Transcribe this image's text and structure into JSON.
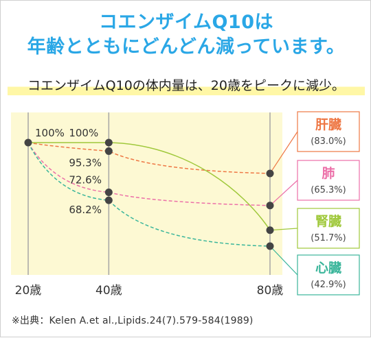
{
  "title": [
    "コエンザイムQ10は",
    "年齢とともにどんどん減っています。"
  ],
  "subtitle": "コエンザイムQ10の体内量は、20歳をピークに減少。",
  "source": "※出典：Kelen A.et al.,Lipids.24(7).579-584(1989)",
  "colors": {
    "title": "#2aa7e6",
    "plot_bg": "#fdf9d3",
    "axis_line": "#a6a6a6",
    "point": "#444444"
  },
  "chart_data": {
    "type": "line",
    "title": "",
    "xlabel": "",
    "ylabel": "",
    "x": [
      20,
      40,
      80
    ],
    "x_tick_labels": [
      "20歳",
      "40歳",
      "80歳"
    ],
    "ylim": [
      40,
      105
    ],
    "grid": "vertical lines at x ticks",
    "series": [
      {
        "name": "肝臓",
        "end_label": "(83.0%)",
        "color": "#ee7744",
        "dash": true,
        "values": [
          100,
          95.3,
          83.0
        ],
        "point_labels": [
          "",
          "95.3%",
          ""
        ]
      },
      {
        "name": "肺",
        "end_label": "(65.3%)",
        "color": "#ec6fa8",
        "dash": true,
        "values": [
          100,
          72.6,
          65.3
        ],
        "point_labels": [
          "",
          "72.6%",
          ""
        ]
      },
      {
        "name": "腎臓",
        "end_label": "(51.7%)",
        "color": "#9fc83a",
        "dash": false,
        "values": [
          100,
          100,
          51.7
        ],
        "point_labels": [
          "100%",
          "100%",
          ""
        ]
      },
      {
        "name": "心臓",
        "end_label": "(42.9%)",
        "color": "#39b59a",
        "dash": true,
        "values": [
          100,
          68.2,
          42.9
        ],
        "point_labels": [
          "",
          "68.2%",
          ""
        ]
      }
    ]
  }
}
